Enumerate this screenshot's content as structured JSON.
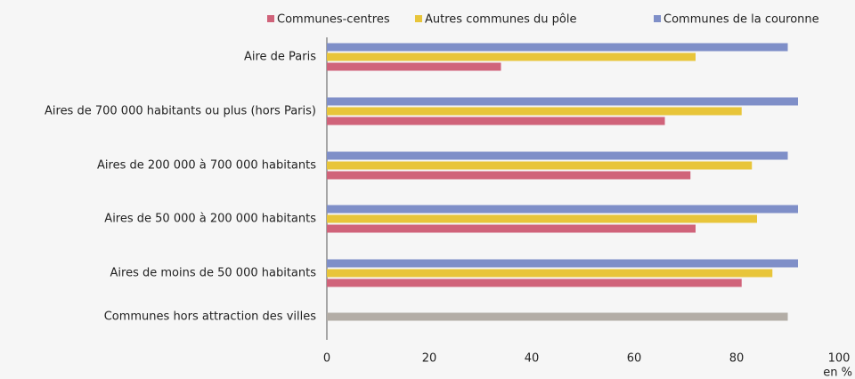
{
  "chart_data": {
    "type": "hbar",
    "categories": [
      "Aire de Paris",
      "Aires de 700 000 habitants ou plus (hors Paris)",
      "Aires de 200 000 à 700 000 habitants",
      "Aires de 50 000 à 200 000 habitants",
      "Aires de moins de 50 000 habitants",
      "Communes hors attraction des villes"
    ],
    "series": [
      {
        "name": "Communes de la couronne",
        "color": "#7f8fc8",
        "values": [
          90,
          92,
          90,
          92,
          92,
          null
        ]
      },
      {
        "name": "Autres communes du pôle",
        "color": "#e8c53a",
        "values": [
          72,
          81,
          83,
          84,
          87,
          null
        ]
      },
      {
        "name": "Communes-centres",
        "color": "#d0637a",
        "values": [
          34,
          66,
          71,
          72,
          81,
          null
        ]
      },
      {
        "color": "#b3ada6",
        "values": [
          null,
          null,
          null,
          null,
          null,
          90
        ]
      }
    ],
    "xlim": [
      0,
      100
    ],
    "xticks": [
      0,
      20,
      40,
      60,
      80,
      100
    ],
    "x_label": "en %",
    "legend": "top"
  }
}
